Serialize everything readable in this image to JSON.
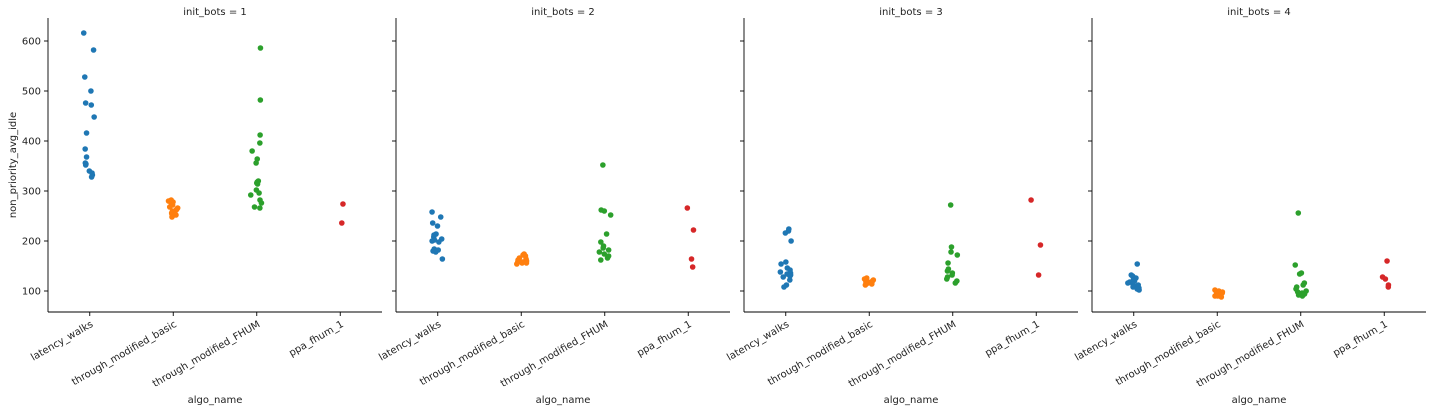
{
  "chart_data": [
    {
      "type": "strip",
      "title": "init_bots = 1",
      "x_label": "algo_name",
      "y_label": "non_priority_avg_idle",
      "categories": [
        "latency_walks",
        "through_modified_basic",
        "through_modified_FHUM",
        "ppa_fhum_1"
      ],
      "colors": [
        "#1f77b4",
        "#ff7f0e",
        "#2ca02c",
        "#d62728"
      ],
      "values": [
        [
          616,
          582,
          528,
          500,
          476,
          472,
          448,
          416,
          384,
          368,
          356,
          354,
          352,
          340,
          336,
          332,
          328
        ],
        [
          282,
          280,
          278,
          276,
          272,
          268,
          266,
          264,
          262,
          260,
          258,
          256,
          254,
          252,
          250,
          248
        ],
        [
          586,
          482,
          412,
          396,
          380,
          364,
          356,
          320,
          318,
          316,
          314,
          302,
          296,
          292,
          282,
          276,
          268,
          266
        ],
        [
          274,
          236
        ]
      ],
      "ylim": [
        58,
        646
      ],
      "yticks": [
        100,
        200,
        300,
        400,
        500,
        600
      ]
    },
    {
      "type": "strip",
      "title": "init_bots = 2",
      "x_label": "algo_name",
      "categories": [
        "latency_walks",
        "through_modified_basic",
        "through_modified_FHUM",
        "ppa_fhum_1"
      ],
      "colors": [
        "#1f77b4",
        "#ff7f0e",
        "#2ca02c",
        "#d62728"
      ],
      "values": [
        [
          258,
          248,
          236,
          230,
          214,
          212,
          208,
          204,
          202,
          200,
          198,
          184,
          182,
          180,
          178,
          164
        ],
        [
          174,
          172,
          170,
          166,
          164,
          162,
          160,
          158,
          158,
          156,
          156,
          154
        ],
        [
          352,
          262,
          260,
          252,
          214,
          198,
          190,
          186,
          182,
          178,
          174,
          170,
          166,
          162
        ],
        [
          266,
          222,
          164,
          148
        ]
      ],
      "ylim": [
        58,
        646
      ],
      "yticks": [
        100,
        200,
        300,
        400,
        500,
        600
      ]
    },
    {
      "type": "strip",
      "title": "init_bots = 3",
      "x_label": "algo_name",
      "categories": [
        "latency_walks",
        "through_modified_basic",
        "through_modified_FHUM",
        "ppa_fhum_1"
      ],
      "colors": [
        "#1f77b4",
        "#ff7f0e",
        "#2ca02c",
        "#d62728"
      ],
      "values": [
        [
          224,
          220,
          216,
          200,
          158,
          154,
          146,
          142,
          138,
          136,
          134,
          132,
          130,
          128,
          122,
          112,
          108
        ],
        [
          126,
          124,
          122,
          120,
          118,
          118,
          116,
          116,
          114,
          114,
          112
        ],
        [
          272,
          188,
          178,
          172,
          156,
          144,
          140,
          136,
          132,
          128,
          124,
          120,
          116
        ],
        [
          282,
          192,
          132
        ]
      ],
      "ylim": [
        58,
        646
      ],
      "yticks": [
        100,
        200,
        300,
        400,
        500,
        600
      ]
    },
    {
      "type": "strip",
      "title": "init_bots = 4",
      "x_label": "algo_name",
      "categories": [
        "latency_walks",
        "through_modified_basic",
        "through_modified_FHUM",
        "ppa_fhum_1"
      ],
      "colors": [
        "#1f77b4",
        "#ff7f0e",
        "#2ca02c",
        "#d62728"
      ],
      "values": [
        [
          154,
          132,
          130,
          128,
          126,
          122,
          120,
          118,
          116,
          114,
          112,
          110,
          108,
          106,
          104,
          102
        ],
        [
          102,
          100,
          98,
          96,
          96,
          94,
          92,
          92,
          90,
          90,
          88
        ],
        [
          256,
          152,
          136,
          134,
          116,
          112,
          108,
          104,
          100,
          98,
          96,
          94,
          92,
          90
        ],
        [
          160,
          128,
          124,
          112,
          108
        ]
      ],
      "ylim": [
        58,
        646
      ],
      "yticks": [
        100,
        200,
        300,
        400,
        500,
        600
      ]
    }
  ]
}
